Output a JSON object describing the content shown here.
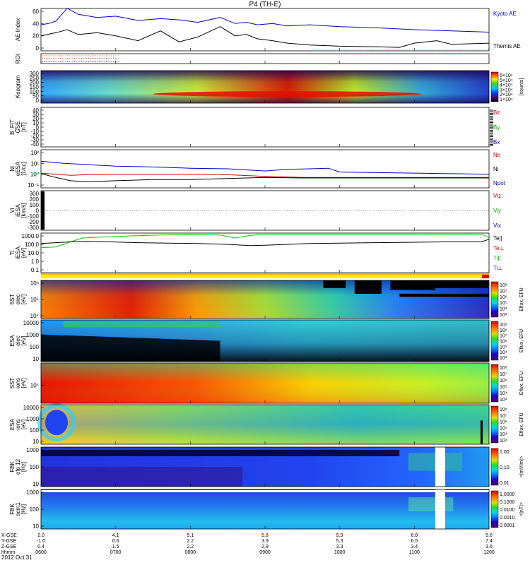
{
  "title": "P4 (TH-E)",
  "chart_data": {
    "type": "multi-panel",
    "x_axis": {
      "ticks": [
        {
          "hhmm": "0600",
          "xgse": "2.0",
          "ygse": "-1.0",
          "zgse": "0.4"
        },
        {
          "hhmm": "0700",
          "xgse": "4.1",
          "ygse": "0.6",
          "zgse": "1.5"
        },
        {
          "hhmm": "0800",
          "xgse": "5.1",
          "ygse": "2.2",
          "zgse": "2.2"
        },
        {
          "hhmm": "0900",
          "xgse": "5.8",
          "ygse": "3.9",
          "zgse": "2.9"
        },
        {
          "hhmm": "1000",
          "xgse": "5.9",
          "ygse": "5.3",
          "zgse": "3.3"
        },
        {
          "hhmm": "1100",
          "xgse": "6.0",
          "ygse": "6.5",
          "zgse": "3.4"
        },
        {
          "hhmm": "1200",
          "xgse": "5.6",
          "ygse": "7.4",
          "zgse": "3.6"
        }
      ],
      "row_labels": [
        "X-GSE",
        "Y-GSE",
        "Z-GSE",
        "hhmm"
      ],
      "date": "2012 Oct 31"
    },
    "panels": [
      {
        "id": "ae",
        "ylabel": "AE Index",
        "yticks": [
          "60",
          "40",
          "20",
          "0"
        ],
        "ylim": [
          0,
          60
        ],
        "legend": [
          {
            "name": "Kyoto AE",
            "color": "#0000cc"
          },
          {
            "name": "Themis AE",
            "color": "#000000"
          }
        ],
        "series": [
          {
            "name": "Kyoto AE",
            "color": "#0000cc",
            "t": [
              0,
              0.1,
              0.2,
              0.35,
              0.5,
              0.75,
              1.0,
              1.3,
              1.6,
              1.85,
              2.1,
              2.4,
              2.6,
              2.75,
              2.9,
              3.1,
              3.3,
              3.6,
              4.0,
              4.5,
              5.0,
              5.5,
              6.0
            ],
            "v": [
              38,
              40,
              44,
              65,
              55,
              50,
              52,
              45,
              48,
              46,
              42,
              50,
              40,
              42,
              38,
              40,
              36,
              38,
              35,
              33,
              30,
              28,
              26
            ]
          },
          {
            "name": "Themis AE",
            "color": "#000000",
            "t": [
              0,
              0.2,
              0.35,
              0.5,
              0.75,
              1.0,
              1.3,
              1.6,
              1.85,
              2.1,
              2.4,
              2.6,
              2.75,
              2.9,
              3.1,
              3.3,
              3.6,
              4.0,
              4.5,
              4.8,
              5.0,
              5.3,
              5.5,
              6.0
            ],
            "v": [
              20,
              25,
              30,
              22,
              25,
              20,
              12,
              28,
              10,
              18,
              35,
              20,
              22,
              15,
              12,
              8,
              5,
              3,
              2,
              1,
              8,
              12,
              6,
              8
            ]
          }
        ]
      },
      {
        "id": "roi",
        "ylabel": "ROI"
      },
      {
        "id": "keogram",
        "ylabel": "Keogram",
        "yticks": [
          "300",
          "250",
          "200",
          "150",
          "100",
          "50",
          "0"
        ],
        "ylim": [
          0,
          300
        ],
        "colorbar": {
          "ticks": [
            "6×10⁴",
            "5×10⁴",
            "4×10⁴",
            "3×10⁴",
            "2×10⁴",
            "1×10⁴"
          ],
          "label": "[counts]"
        }
      },
      {
        "id": "bfit",
        "ylabel": "B_FIT",
        "ylabel2": "GSE",
        "unit": "[nT]",
        "yticks": [
          "40",
          "30",
          "20",
          "10",
          "0",
          "-10",
          "-20",
          "-30",
          "-40"
        ],
        "ylim": [
          -40,
          40
        ],
        "legend": [
          {
            "name": "Bz",
            "color": "#cc0000"
          },
          {
            "name": "By",
            "color": "#00aa00"
          },
          {
            "name": "Bx",
            "color": "#0000cc"
          }
        ]
      },
      {
        "id": "ni",
        "ylabel": "Ni",
        "ylabel2": "eESA",
        "unit": "[1/cc]",
        "yticks": [
          "10²",
          "10¹",
          "10⁰",
          "10⁻¹"
        ],
        "legend": [
          {
            "name": "Ne",
            "color": "#cc0000"
          },
          {
            "name": "Ni",
            "color": "#000000"
          },
          {
            "name": "Npot",
            "color": "#0000cc"
          }
        ],
        "series": [
          {
            "name": "Npot",
            "color": "#0000cc",
            "t": [
              0,
              0.3,
              0.6,
              1.0,
              1.3,
              1.6,
              2.0,
              2.5,
              3.0,
              3.3,
              3.6,
              3.85,
              4.0,
              4.5,
              5.0,
              5.5,
              6.0
            ],
            "v": [
              1.2,
              1.0,
              0.9,
              0.75,
              0.7,
              0.65,
              0.55,
              0.5,
              0.3,
              0.45,
              0.5,
              0.55,
              0.2,
              0.15,
              0.1,
              0.05,
              0
            ]
          },
          {
            "name": "Ne",
            "color": "#cc0000",
            "t": [
              0,
              0.2,
              0.4,
              0.6,
              1.0,
              1.5,
              2.0,
              2.5,
              3.0,
              3.5,
              4.0,
              4.5,
              5.0,
              5.5,
              6.0
            ],
            "v": [
              0.1,
              0.0,
              -0.1,
              -0.05,
              0.0,
              0.0,
              0.0,
              -0.05,
              -0.2,
              -0.3,
              -0.3,
              -0.3,
              -0.3,
              -0.3,
              -0.3
            ]
          },
          {
            "name": "Ni",
            "color": "#000000",
            "t": [
              0,
              0.2,
              0.4,
              0.6,
              1.0,
              1.5,
              2.0,
              2.5,
              3.0,
              3.5,
              4.0,
              4.5,
              5.0,
              5.5,
              6.0
            ],
            "v": [
              0.05,
              -0.3,
              -0.6,
              -0.7,
              -0.6,
              -0.5,
              -0.5,
              -0.4,
              -0.3,
              -0.35,
              -0.35,
              -0.35,
              -0.35,
              -0.35,
              -0.35
            ]
          }
        ]
      },
      {
        "id": "vi",
        "ylabel": "Vi",
        "ylabel2": "iESA",
        "unit": "[km/s]",
        "yticks": [
          "300",
          "200",
          "100",
          "0",
          "-100",
          "-200",
          "-300"
        ],
        "ylim": [
          -300,
          300
        ],
        "legend": [
          {
            "name": "Viz",
            "color": "#cc0000"
          },
          {
            "name": "Viy",
            "color": "#00aa00"
          },
          {
            "name": "Vix",
            "color": "#0000cc"
          }
        ]
      },
      {
        "id": "ti",
        "ylabel": "Ti",
        "ylabel2": "iESA",
        "unit": "[eV]",
        "yticks": [
          "1000.0",
          "100.0",
          "10.0",
          "1.0",
          "0.1"
        ],
        "legend": [
          {
            "name": "Te||",
            "color": "#000000"
          },
          {
            "name": "Te⊥",
            "color": "#cc0000"
          },
          {
            "name": "Ti||",
            "color": "#00aa00"
          },
          {
            "name": "Ti⊥",
            "color": "#0000cc"
          }
        ],
        "series": [
          {
            "name": "Ti||",
            "color": "#00cc00",
            "t": [
              0,
              0.2,
              0.4,
              0.55,
              0.8,
              1.2,
              1.6,
              2.0,
              2.4,
              2.6,
              2.8,
              3.0,
              3.5,
              4.0,
              4.5,
              5.0,
              5.5,
              5.9,
              6.0
            ],
            "v": [
              1.6,
              1.7,
              2.3,
              2.75,
              2.85,
              3.0,
              3.1,
              3.15,
              3.1,
              2.75,
              3.05,
              3.2,
              3.2,
              3.2,
              3.2,
              3.2,
              3.15,
              3.2,
              2.8
            ]
          },
          {
            "name": "Te||",
            "color": "#000000",
            "t": [
              0,
              0.2,
              0.4,
              0.6,
              0.9,
              1.3,
              1.7,
              2.1,
              2.5,
              2.8,
              3.0,
              3.3,
              3.6,
              4.0,
              4.5,
              5.0,
              5.5,
              5.9,
              6.0
            ],
            "v": [
              2.1,
              2.2,
              2.3,
              2.35,
              2.3,
              2.2,
              2.15,
              2.1,
              2.0,
              1.85,
              1.9,
              2.0,
              2.1,
              2.15,
              2.2,
              2.25,
              2.3,
              2.3,
              2.6
            ]
          }
        ]
      },
      {
        "id": "flags"
      },
      {
        "id": "sst_e",
        "ylabel": "SST",
        "ylabel2": "elec",
        "unit": "[eV]",
        "yticks": [
          "10⁶",
          "10⁵",
          "10⁴"
        ],
        "colorbar": {
          "ticks": [
            "10⁸",
            "10⁷",
            "10⁶",
            "10⁵",
            "10⁴",
            "10³"
          ],
          "label": "Eflux, EFU"
        }
      },
      {
        "id": "esa_e",
        "ylabel": "ESA",
        "ylabel2": "elec",
        "unit": "[eV]",
        "yticks": [
          "10000",
          "1000",
          "100",
          "10"
        ],
        "colorbar": {
          "ticks": [
            "10⁹",
            "10⁸",
            "10⁷",
            "10⁶",
            "10⁵",
            "10⁴",
            "10³"
          ],
          "label": "Eflux, EFU"
        }
      },
      {
        "id": "sst_i",
        "ylabel": "SST",
        "ylabel2": "ions",
        "unit": "[eV]",
        "yticks": [
          "10⁵"
        ],
        "colorbar": {
          "ticks": [
            "10⁸",
            "10⁷",
            "10⁶",
            "10⁵",
            "10⁴",
            "10³"
          ],
          "label": "Eflux, EFU"
        }
      },
      {
        "id": "esa_i",
        "ylabel": "ESA",
        "ylabel2": "ions",
        "unit": "[eV]",
        "yticks": [
          "10000",
          "1000",
          "100",
          "10"
        ],
        "colorbar": {
          "ticks": [
            "10⁸",
            "10⁷",
            "10⁶",
            "10⁵",
            "10⁴",
            "10³"
          ],
          "label": "Eflux, EFU"
        }
      },
      {
        "id": "fbk_e",
        "ylabel": "FBK",
        "ylabel2": "efp 12",
        "unit": "[Hz]",
        "yticks": [
          "1000",
          "100",
          "10"
        ],
        "colorbar": {
          "ticks": [
            "1.00",
            "0.10",
            "0.01"
          ],
          "label": "<|mV/m|>"
        }
      },
      {
        "id": "fbk_b",
        "ylabel": "FBK",
        "ylabel2": "scm1",
        "unit": "[Hz]",
        "yticks": [
          "1000",
          "100",
          "10"
        ],
        "colorbar": {
          "ticks": [
            "1.0000",
            "0.1000",
            "0.0100",
            "0.0010",
            "0.0001"
          ],
          "label": "<|nT|>"
        }
      }
    ]
  }
}
